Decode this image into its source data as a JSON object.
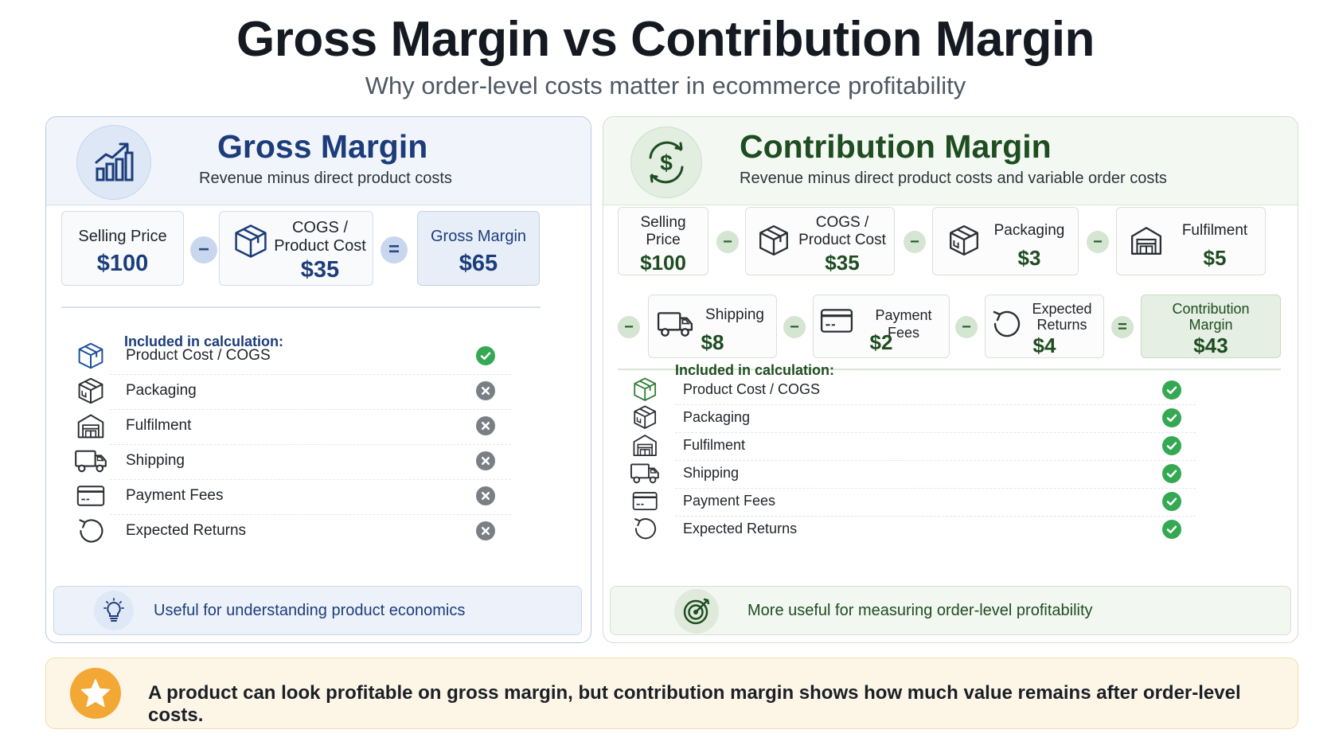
{
  "title": "Gross Margin vs Contribution Margin",
  "subtitle": "Why order-level costs matter in ecommerce profitability",
  "colors": {
    "gross_accent": "#1c3d7a",
    "contribution_accent": "#1f4d21",
    "check_green": "#34a853",
    "cross_gray": "#7a7f86",
    "star_orange": "#f3a835"
  },
  "gross": {
    "icon": "bar-chart-growth-icon",
    "title": "Gross Margin",
    "description": "Revenue minus direct product costs",
    "formula": {
      "selling_price": {
        "label": "Selling Price",
        "value": "$100"
      },
      "op1": "−",
      "cogs": {
        "label_line1": "COGS /",
        "label_line2": "Product Cost",
        "value": "$35",
        "icon": "box-icon"
      },
      "eq": "=",
      "result": {
        "label": "Gross Margin",
        "value": "$65"
      }
    },
    "included_title": "Included in calculation:",
    "items": [
      {
        "label": "Product Cost / COGS",
        "icon": "box-icon",
        "included": true
      },
      {
        "label": "Packaging",
        "icon": "package-icon",
        "included": false
      },
      {
        "label": "Fulfilment",
        "icon": "warehouse-icon",
        "included": false
      },
      {
        "label": "Shipping",
        "icon": "truck-icon",
        "included": false
      },
      {
        "label": "Payment Fees",
        "icon": "credit-card-icon",
        "included": false
      },
      {
        "label": "Expected Returns",
        "icon": "return-arrow-icon",
        "included": false
      }
    ],
    "footer": {
      "icon": "lightbulb-icon",
      "text": "Useful for understanding product economics"
    }
  },
  "contribution": {
    "icon": "dollar-circle-icon",
    "title": "Contribution Margin",
    "description": "Revenue minus direct product costs and variable order costs",
    "formula": {
      "selling_price": {
        "label_line1": "Selling",
        "label_line2": "Price",
        "value": "$100"
      },
      "cogs": {
        "label_line1": "COGS /",
        "label_line2": "Product Cost",
        "value": "$35",
        "icon": "box-icon"
      },
      "packaging": {
        "label": "Packaging",
        "value": "$3",
        "icon": "package-icon"
      },
      "fulfilment": {
        "label": "Fulfilment",
        "value": "$5",
        "icon": "warehouse-icon"
      },
      "shipping": {
        "label": "Shipping",
        "value": "$8",
        "icon": "truck-icon"
      },
      "payment": {
        "label": "Payment Fees",
        "value": "$2",
        "icon": "credit-card-icon"
      },
      "returns": {
        "label_line1": "Expected",
        "label_line2": "Returns",
        "value": "$4",
        "icon": "return-arrow-icon"
      },
      "result": {
        "label_line1": "Contribution",
        "label_line2": "Margin",
        "value": "$43"
      },
      "minus": "−",
      "eq": "="
    },
    "included_title": "Included in calculation:",
    "items": [
      {
        "label": "Product Cost / COGS",
        "icon": "box-icon",
        "included": true
      },
      {
        "label": "Packaging",
        "icon": "package-icon",
        "included": true
      },
      {
        "label": "Fulfilment",
        "icon": "warehouse-icon",
        "included": true
      },
      {
        "label": "Shipping",
        "icon": "truck-icon",
        "included": true
      },
      {
        "label": "Payment Fees",
        "icon": "credit-card-icon",
        "included": true
      },
      {
        "label": "Expected Returns",
        "icon": "return-arrow-icon",
        "included": true
      }
    ],
    "footer": {
      "icon": "target-icon",
      "text": "More useful for measuring order-level profitability"
    }
  },
  "banner": {
    "icon": "star-icon",
    "text": "A product can look profitable on gross margin, but contribution margin shows how much value remains after order-level costs."
  }
}
